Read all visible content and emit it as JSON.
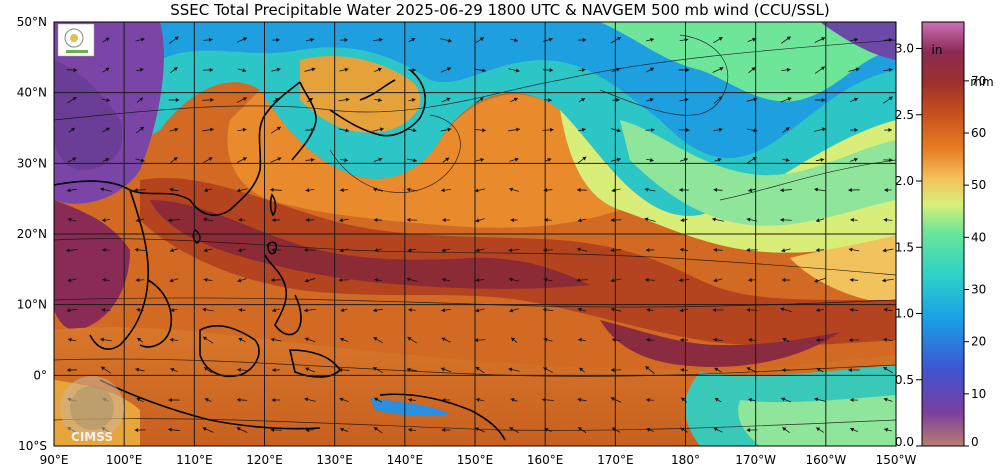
{
  "title": "SSEC Total Precipitable Water  2025-06-29 1800 UTC & NAVGEM 500 mb wind (CCU/SSL)",
  "lat_labels": [
    "50°N",
    "40°N",
    "30°N",
    "20°N",
    "10°N",
    "0°",
    "10°S"
  ],
  "lon_labels": [
    "90°E",
    "100°E",
    "110°E",
    "120°E",
    "130°E",
    "140°E",
    "150°E",
    "160°E",
    "170°E",
    "180°",
    "170°W",
    "160°W",
    "150°W"
  ],
  "colorbar": {
    "unit_in": "in",
    "unit_mm": "mm",
    "in_ticks": [
      "3.0",
      "2.5",
      "2.0",
      "1.5",
      "1.0",
      "0.5",
      "0.0"
    ],
    "in_values": [
      3.0,
      2.5,
      2.0,
      1.5,
      1.0,
      0.5,
      0.0
    ],
    "mm_ticks": [
      "70",
      "60",
      "50",
      "40",
      "30",
      "20",
      "10",
      "0"
    ],
    "mm_values": [
      70,
      60,
      50,
      40,
      30,
      20,
      10,
      0
    ],
    "max_in": 3.2,
    "colors": [
      "#b87d6e",
      "#7b3fa0",
      "#3d55d0",
      "#1aa0e8",
      "#2dd0c8",
      "#66e59a",
      "#d7ef7a",
      "#f5c25a",
      "#e67d24",
      "#c9521d",
      "#9c2f2f",
      "#8a2b55",
      "#cc6fb6"
    ]
  },
  "logo_text": "CIMSS",
  "colors": {
    "grid": "#1a1a1a",
    "coast": "#000000",
    "wind": "#111111"
  }
}
